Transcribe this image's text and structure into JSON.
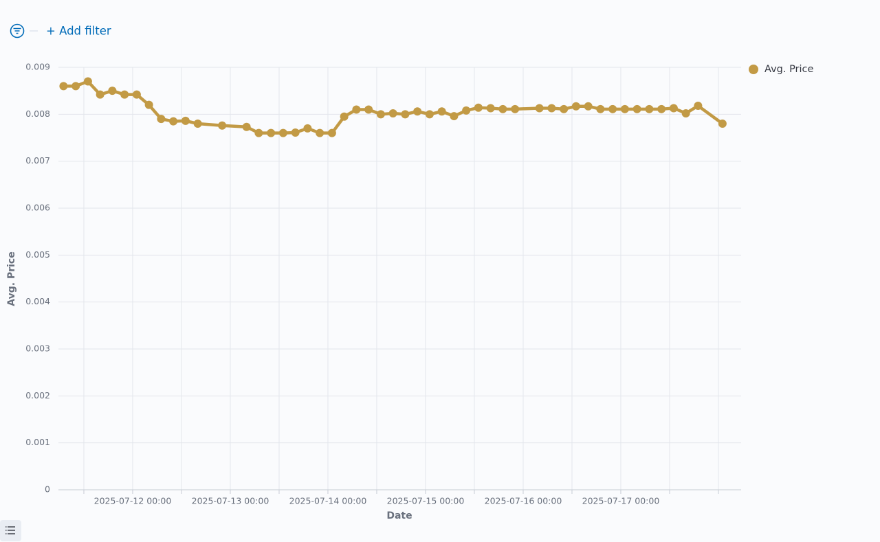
{
  "filter_bar": {
    "add_filter": "+ Add filter"
  },
  "chart_data": {
    "type": "line",
    "x_label": "Date",
    "y_label": "Avg. Price",
    "legend": "top-right",
    "grid": true,
    "xlim": [
      "2025-07-11 05:45",
      "2025-07-18 05:35"
    ],
    "xticks": [
      {
        "value": "2025-07-11 12:00",
        "label": null
      },
      {
        "value": "2025-07-12 00:00",
        "label": "2025-07-12 00:00"
      },
      {
        "value": "2025-07-12 12:00",
        "label": null
      },
      {
        "value": "2025-07-13 00:00",
        "label": "2025-07-13 00:00"
      },
      {
        "value": "2025-07-13 12:00",
        "label": null
      },
      {
        "value": "2025-07-14 00:00",
        "label": "2025-07-14 00:00"
      },
      {
        "value": "2025-07-14 12:00",
        "label": null
      },
      {
        "value": "2025-07-15 00:00",
        "label": "2025-07-15 00:00"
      },
      {
        "value": "2025-07-15 12:00",
        "label": null
      },
      {
        "value": "2025-07-16 00:00",
        "label": "2025-07-16 00:00"
      },
      {
        "value": "2025-07-16 12:00",
        "label": null
      },
      {
        "value": "2025-07-17 00:00",
        "label": "2025-07-17 00:00"
      },
      {
        "value": "2025-07-17 12:00",
        "label": null
      },
      {
        "value": "2025-07-18 00:00",
        "label": null
      }
    ],
    "ylim": [
      0,
      0.009
    ],
    "yticks": [
      0,
      0.001,
      0.002,
      0.003,
      0.004,
      0.005,
      0.006,
      0.007,
      0.008,
      0.009
    ],
    "x": [
      "2025-07-11 07:00",
      "2025-07-11 10:00",
      "2025-07-11 13:00",
      "2025-07-11 16:00",
      "2025-07-11 19:00",
      "2025-07-11 22:00",
      "2025-07-12 01:00",
      "2025-07-12 04:00",
      "2025-07-12 07:00",
      "2025-07-12 10:00",
      "2025-07-12 13:00",
      "2025-07-12 16:00",
      "2025-07-12 22:00",
      "2025-07-13 04:00",
      "2025-07-13 07:00",
      "2025-07-13 10:00",
      "2025-07-13 13:00",
      "2025-07-13 16:00",
      "2025-07-13 19:00",
      "2025-07-13 22:00",
      "2025-07-14 01:00",
      "2025-07-14 04:00",
      "2025-07-14 07:00",
      "2025-07-14 10:00",
      "2025-07-14 13:00",
      "2025-07-14 16:00",
      "2025-07-14 19:00",
      "2025-07-14 22:00",
      "2025-07-15 01:00",
      "2025-07-15 04:00",
      "2025-07-15 07:00",
      "2025-07-15 10:00",
      "2025-07-15 13:00",
      "2025-07-15 16:00",
      "2025-07-15 19:00",
      "2025-07-15 22:00",
      "2025-07-16 04:00",
      "2025-07-16 07:00",
      "2025-07-16 10:00",
      "2025-07-16 13:00",
      "2025-07-16 16:00",
      "2025-07-16 19:00",
      "2025-07-16 22:00",
      "2025-07-17 01:00",
      "2025-07-17 04:00",
      "2025-07-17 07:00",
      "2025-07-17 10:00",
      "2025-07-17 13:00",
      "2025-07-17 16:00",
      "2025-07-17 19:00",
      "2025-07-18 01:00"
    ],
    "series": [
      {
        "name": "Avg. Price",
        "color": "#c29a45",
        "values": [
          0.0086,
          0.0086,
          0.0087,
          0.00842,
          0.0085,
          0.00842,
          0.00842,
          0.0082,
          0.0079,
          0.00785,
          0.00786,
          0.0078,
          0.00776,
          0.00773,
          0.0076,
          0.0076,
          0.0076,
          0.00761,
          0.0077,
          0.0076,
          0.0076,
          0.00795,
          0.0081,
          0.0081,
          0.008,
          0.00802,
          0.008,
          0.00806,
          0.008,
          0.00806,
          0.00796,
          0.00808,
          0.00814,
          0.00813,
          0.00811,
          0.00811,
          0.00813,
          0.00813,
          0.00811,
          0.00817,
          0.00817,
          0.00811,
          0.00811,
          0.00811,
          0.00811,
          0.00811,
          0.00811,
          0.00813,
          0.00802,
          0.00818,
          0.0078
        ]
      }
    ]
  }
}
